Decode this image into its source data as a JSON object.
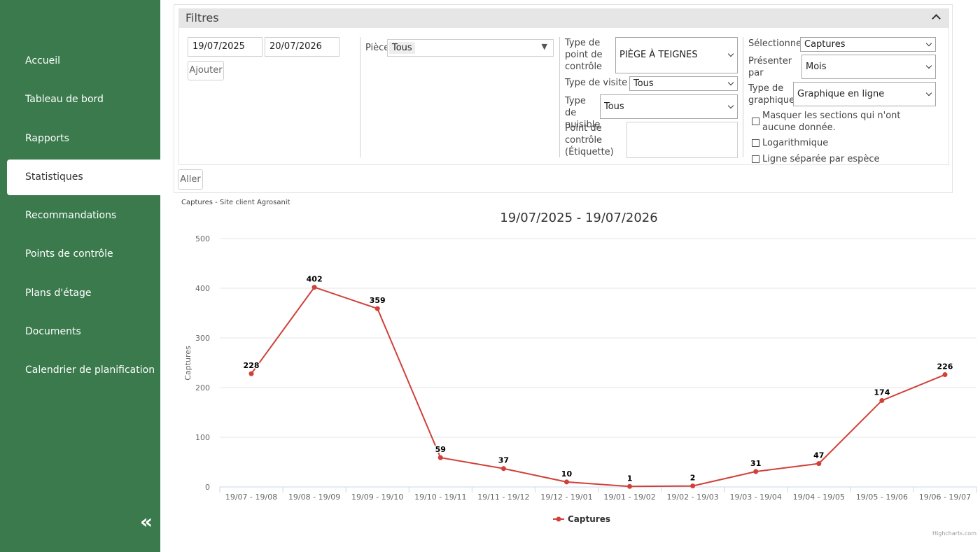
{
  "sidebar": {
    "items": [
      {
        "label": "Accueil"
      },
      {
        "label": "Tableau de bord"
      },
      {
        "label": "Rapports"
      },
      {
        "label": "Statistiques",
        "active": true
      },
      {
        "label": "Recommandations"
      },
      {
        "label": "Points de contrôle"
      },
      {
        "label": "Plans d'étage"
      },
      {
        "label": "Documents"
      },
      {
        "label": "Calendrier de planification"
      }
    ],
    "collapse_glyph": "«"
  },
  "filters": {
    "title": "Filtres",
    "date_from": "19/07/2025",
    "date_to": "20/07/2026",
    "add_label": "Ajouter",
    "piece_label": "Pièce",
    "piece_value": "Tous",
    "checkpoint_type_label": "Type de point de contrôle",
    "checkpoint_type_value": "PIÈGE À TEIGNES",
    "visit_type_label": "Type de visite",
    "visit_type_value": "Tous",
    "pest_type_label": "Type de nuisible",
    "pest_type_value": "Tous",
    "checkpoint_tag_label": "Point de contrôle (Étiquette)",
    "checkpoint_tag_value": "",
    "select_label": "Sélectionnez",
    "select_value": "Captures",
    "present_label": "Présenter par",
    "present_value": "Mois",
    "graph_type_label": "Type de graphique",
    "graph_type_value": "Graphique en ligne",
    "hide_empty_label": "Masquer les sections qui n'ont aucune donnée.",
    "log_label": "Logarithmique",
    "split_label": "Ligne séparée par espèce",
    "go_label": "Aller"
  },
  "export_title": "Captures - Site client Agrosanit",
  "credits": "Highcharts.com",
  "colors": {
    "sidebar": "#3a7a4c",
    "series": "#d0413a"
  },
  "chart_data": {
    "type": "line",
    "title": "19/07/2025 - 19/07/2026",
    "ylabel": "Captures",
    "xlabel": "",
    "ylim": [
      0,
      500
    ],
    "yticks": [
      0,
      100,
      200,
      300,
      400,
      500
    ],
    "grid": true,
    "legend": "bottom-center",
    "categories": [
      "19/07 - 19/08",
      "19/08 - 19/09",
      "19/09 - 19/10",
      "19/10 - 19/11",
      "19/11 - 19/12",
      "19/12 - 19/01",
      "19/01 - 19/02",
      "19/02 - 19/03",
      "19/03 - 19/04",
      "19/04 - 19/05",
      "19/05 - 19/06",
      "19/06 - 19/07"
    ],
    "series": [
      {
        "name": "Captures",
        "values": [
          228,
          402,
          359,
          59,
          37,
          10,
          1,
          2,
          31,
          47,
          174,
          226
        ]
      }
    ]
  }
}
